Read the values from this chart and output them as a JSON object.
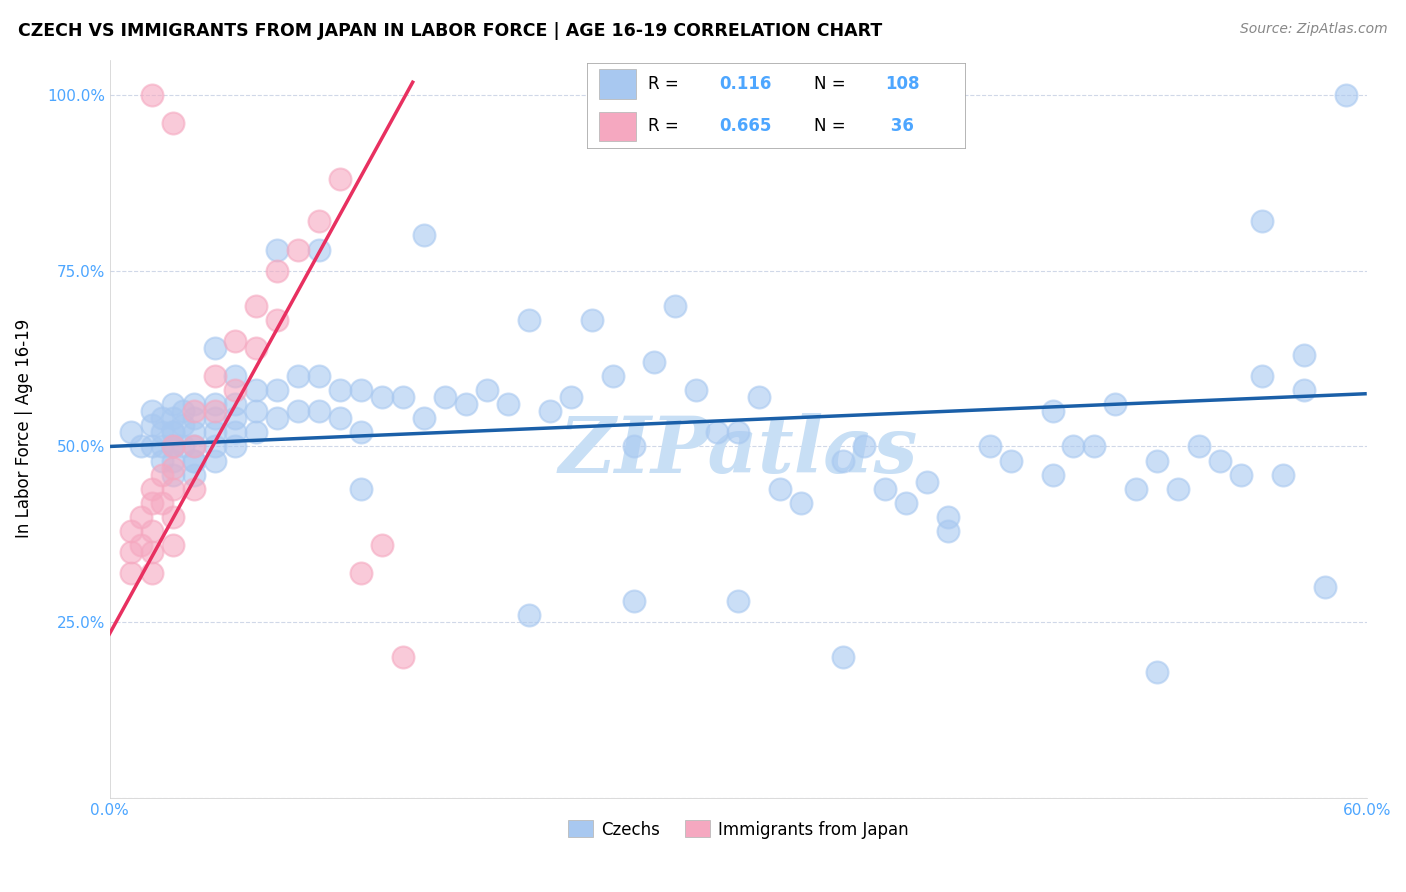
{
  "title": "CZECH VS IMMIGRANTS FROM JAPAN IN LABOR FORCE | AGE 16-19 CORRELATION CHART",
  "source": "Source: ZipAtlas.com",
  "ylabel": "In Labor Force | Age 16-19",
  "x_min": 0.0,
  "x_max": 0.6,
  "y_min": 0.0,
  "y_max": 1.05,
  "x_ticks": [
    0.0,
    0.1,
    0.2,
    0.3,
    0.4,
    0.5,
    0.6
  ],
  "x_tick_labels": [
    "0.0%",
    "",
    "",
    "",
    "",
    "",
    "60.0%"
  ],
  "y_ticks": [
    0.0,
    0.25,
    0.5,
    0.75,
    1.0
  ],
  "y_tick_labels": [
    "",
    "25.0%",
    "50.0%",
    "75.0%",
    "100.0%"
  ],
  "legend_r_blue": "0.116",
  "legend_n_blue": "108",
  "legend_r_pink": "0.665",
  "legend_n_pink": "36",
  "blue_color": "#a8c8f0",
  "blue_line_color": "#1a5fa8",
  "pink_color": "#f5a8c0",
  "pink_line_color": "#e83060",
  "tick_label_color": "#4da6ff",
  "legend_value_color": "#4da6ff",
  "watermark": "ZIPatlas",
  "watermark_color": "#c8dff5",
  "background_color": "#ffffff",
  "grid_color": "#d0d8e8",
  "blue_scatter_x": [
    0.01,
    0.015,
    0.02,
    0.02,
    0.02,
    0.025,
    0.025,
    0.025,
    0.025,
    0.03,
    0.03,
    0.03,
    0.03,
    0.03,
    0.03,
    0.03,
    0.03,
    0.035,
    0.035,
    0.04,
    0.04,
    0.04,
    0.04,
    0.04,
    0.04,
    0.05,
    0.05,
    0.05,
    0.05,
    0.05,
    0.06,
    0.06,
    0.06,
    0.06,
    0.07,
    0.07,
    0.07,
    0.08,
    0.08,
    0.09,
    0.09,
    0.1,
    0.1,
    0.11,
    0.11,
    0.12,
    0.12,
    0.13,
    0.14,
    0.15,
    0.16,
    0.17,
    0.18,
    0.19,
    0.2,
    0.21,
    0.22,
    0.23,
    0.24,
    0.25,
    0.26,
    0.27,
    0.28,
    0.29,
    0.3,
    0.31,
    0.32,
    0.33,
    0.35,
    0.36,
    0.37,
    0.38,
    0.39,
    0.4,
    0.42,
    0.43,
    0.45,
    0.46,
    0.47,
    0.48,
    0.49,
    0.5,
    0.51,
    0.52,
    0.53,
    0.54,
    0.55,
    0.56,
    0.57,
    0.58,
    0.035,
    0.04,
    0.05,
    0.06,
    0.08,
    0.1,
    0.12,
    0.15,
    0.2,
    0.25,
    0.3,
    0.35,
    0.4,
    0.45,
    0.5,
    0.55,
    0.57,
    0.59
  ],
  "blue_scatter_y": [
    0.52,
    0.5,
    0.53,
    0.55,
    0.5,
    0.54,
    0.52,
    0.5,
    0.48,
    0.56,
    0.54,
    0.52,
    0.5,
    0.48,
    0.46,
    0.52,
    0.5,
    0.55,
    0.53,
    0.56,
    0.54,
    0.52,
    0.5,
    0.48,
    0.46,
    0.56,
    0.54,
    0.52,
    0.5,
    0.48,
    0.6,
    0.56,
    0.54,
    0.52,
    0.58,
    0.55,
    0.52,
    0.58,
    0.54,
    0.6,
    0.55,
    0.6,
    0.55,
    0.58,
    0.54,
    0.58,
    0.52,
    0.57,
    0.57,
    0.54,
    0.57,
    0.56,
    0.58,
    0.56,
    0.68,
    0.55,
    0.57,
    0.68,
    0.6,
    0.5,
    0.62,
    0.7,
    0.58,
    0.52,
    0.52,
    0.57,
    0.44,
    0.42,
    0.48,
    0.5,
    0.44,
    0.42,
    0.45,
    0.4,
    0.5,
    0.48,
    0.55,
    0.5,
    0.5,
    0.56,
    0.44,
    0.48,
    0.44,
    0.5,
    0.48,
    0.46,
    0.6,
    0.46,
    0.58,
    0.3,
    0.5,
    0.48,
    0.64,
    0.5,
    0.78,
    0.78,
    0.44,
    0.8,
    0.26,
    0.28,
    0.28,
    0.2,
    0.38,
    0.46,
    0.18,
    0.82,
    0.63,
    1.0
  ],
  "pink_scatter_x": [
    0.01,
    0.01,
    0.01,
    0.015,
    0.015,
    0.02,
    0.02,
    0.02,
    0.02,
    0.02,
    0.025,
    0.025,
    0.03,
    0.03,
    0.03,
    0.03,
    0.03,
    0.04,
    0.04,
    0.04,
    0.05,
    0.05,
    0.06,
    0.06,
    0.07,
    0.07,
    0.08,
    0.08,
    0.09,
    0.1,
    0.11,
    0.12,
    0.13,
    0.14,
    0.02,
    0.03
  ],
  "pink_scatter_y": [
    0.38,
    0.35,
    0.32,
    0.4,
    0.36,
    0.44,
    0.42,
    0.38,
    0.35,
    0.32,
    0.46,
    0.42,
    0.5,
    0.47,
    0.44,
    0.4,
    0.36,
    0.55,
    0.5,
    0.44,
    0.6,
    0.55,
    0.65,
    0.58,
    0.7,
    0.64,
    0.75,
    0.68,
    0.78,
    0.82,
    0.88,
    0.32,
    0.36,
    0.2,
    1.0,
    0.96
  ],
  "blue_trend_x": [
    0.0,
    0.6
  ],
  "blue_trend_y": [
    0.5,
    0.575
  ],
  "pink_trend_x": [
    -0.01,
    0.145
  ],
  "pink_trend_y": [
    0.18,
    1.02
  ]
}
